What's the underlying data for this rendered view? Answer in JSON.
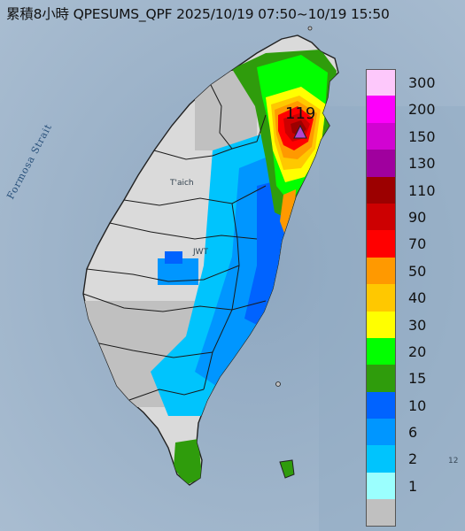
{
  "header": {
    "title": "累積8小時 QPESUMS_QPF 2025/10/19 07:50~10/19 15:50"
  },
  "map": {
    "sea_label": "Formosa Strait",
    "city_label_1": "T'aich",
    "city_label_2": "JWT",
    "corner_mark": "12",
    "peak": {
      "value": "119",
      "marker_color": "#b347d1"
    }
  },
  "legend": {
    "items": [
      {
        "label": "300",
        "color": "#fdc8fb"
      },
      {
        "label": "200",
        "color": "#fc00fb"
      },
      {
        "label": "150",
        "color": "#d103d2"
      },
      {
        "label": "130",
        "color": "#a0009e"
      },
      {
        "label": "110",
        "color": "#9c0000"
      },
      {
        "label": "90",
        "color": "#cd0001"
      },
      {
        "label": "70",
        "color": "#ff0000"
      },
      {
        "label": "50",
        "color": "#ff9900"
      },
      {
        "label": "40",
        "color": "#ffc800"
      },
      {
        "label": "30",
        "color": "#ffff00"
      },
      {
        "label": "20",
        "color": "#02ff00"
      },
      {
        "label": "15",
        "color": "#2f9c0c"
      },
      {
        "label": "10",
        "color": "#0063ff"
      },
      {
        "label": "6",
        "color": "#0096ff"
      },
      {
        "label": "2",
        "color": "#00c4fd"
      },
      {
        "label": "1",
        "color": "#9bfffe"
      },
      {
        "label": "",
        "color": "#c0c0c0"
      }
    ]
  }
}
